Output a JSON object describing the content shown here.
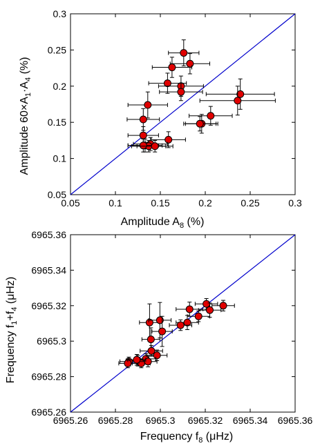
{
  "chart_data": [
    {
      "type": "scatter",
      "xlabel": {
        "main": "Amplitude A",
        "sub": "8",
        "unit": " (%)"
      },
      "ylabel": {
        "main": "Amplitude 60×A",
        "sub1": "1",
        "mid": "·A",
        "sub2": "4",
        "unit": " (%)"
      },
      "xlim": [
        0.05,
        0.3
      ],
      "ylim": [
        0.05,
        0.3
      ],
      "xticks": [
        "0.05",
        "0.1",
        "0.15",
        "0.2",
        "0.25",
        "0.3"
      ],
      "yticks": [
        "0.05",
        "0.1",
        "0.15",
        "0.2",
        "0.25",
        "0.3"
      ],
      "reference_line": {
        "from": [
          0.05,
          0.05
        ],
        "to": [
          0.3,
          0.3
        ],
        "color": "#0000cc"
      },
      "marker_color": "#e00000",
      "points": [
        {
          "x": 0.176,
          "y": 0.246,
          "xerr": 0.017,
          "yerr": 0.018
        },
        {
          "x": 0.183,
          "y": 0.231,
          "xerr": 0.022,
          "yerr": 0.014
        },
        {
          "x": 0.163,
          "y": 0.226,
          "xerr": 0.022,
          "yerr": 0.014
        },
        {
          "x": 0.158,
          "y": 0.204,
          "xerr": 0.021,
          "yerr": 0.014
        },
        {
          "x": 0.173,
          "y": 0.2,
          "xerr": 0.025,
          "yerr": 0.014
        },
        {
          "x": 0.173,
          "y": 0.192,
          "xerr": 0.024,
          "yerr": 0.012
        },
        {
          "x": 0.239,
          "y": 0.189,
          "xerr": 0.038,
          "yerr": 0.021
        },
        {
          "x": 0.236,
          "y": 0.18,
          "xerr": 0.042,
          "yerr": 0.02
        },
        {
          "x": 0.136,
          "y": 0.174,
          "xerr": 0.022,
          "yerr": 0.018
        },
        {
          "x": 0.206,
          "y": 0.159,
          "xerr": 0.024,
          "yerr": 0.013
        },
        {
          "x": 0.131,
          "y": 0.154,
          "xerr": 0.018,
          "yerr": 0.015
        },
        {
          "x": 0.196,
          "y": 0.148,
          "xerr": 0.018,
          "yerr": 0.013
        },
        {
          "x": 0.194,
          "y": 0.148,
          "xerr": 0.018,
          "yerr": 0.01
        },
        {
          "x": 0.131,
          "y": 0.132,
          "xerr": 0.017,
          "yerr": 0.012
        },
        {
          "x": 0.159,
          "y": 0.126,
          "xerr": 0.019,
          "yerr": 0.011
        },
        {
          "x": 0.139,
          "y": 0.12,
          "xerr": 0.019,
          "yerr": 0.009
        },
        {
          "x": 0.133,
          "y": 0.118,
          "xerr": 0.019,
          "yerr": 0.009
        },
        {
          "x": 0.137,
          "y": 0.117,
          "xerr": 0.019,
          "yerr": 0.008
        },
        {
          "x": 0.131,
          "y": 0.118,
          "xerr": 0.017,
          "yerr": 0.009
        },
        {
          "x": 0.144,
          "y": 0.117,
          "xerr": 0.02,
          "yerr": 0.008
        }
      ]
    },
    {
      "type": "scatter",
      "xlabel": {
        "main": "Frequency f",
        "sub": "8",
        "unit": " (μHz)"
      },
      "ylabel": {
        "main": "Frequency f",
        "sub1": "1",
        "mid": "+f",
        "sub2": "4",
        "unit": " (μHz)"
      },
      "xlim": [
        6965.26,
        6965.36
      ],
      "ylim": [
        6965.26,
        6965.36
      ],
      "xticks": [
        "6965.26",
        "6965.28",
        "6965.3",
        "6965.32",
        "6965.34",
        "6965.36"
      ],
      "yticks": [
        "6965.26",
        "6965.28",
        "6965.3",
        "6965.32",
        "6965.34",
        "6965.36"
      ],
      "reference_line": {
        "from": [
          6965.26,
          6965.26
        ],
        "to": [
          6965.36,
          6965.36
        ],
        "color": "#0000cc"
      },
      "marker_color": "#e00000",
      "points": [
        {
          "x": 6965.2952,
          "y": 6965.3105,
          "xerr": 0.0045,
          "yerr": 0.0105
        },
        {
          "x": 6965.2998,
          "y": 6965.3118,
          "xerr": 0.005,
          "yerr": 0.01
        },
        {
          "x": 6965.3008,
          "y": 6965.3055,
          "xerr": 0.0045,
          "yerr": 0.0085
        },
        {
          "x": 6965.2958,
          "y": 6965.301,
          "xerr": 0.004,
          "yerr": 0.0065
        },
        {
          "x": 6965.313,
          "y": 6965.318,
          "xerr": 0.006,
          "yerr": 0.004
        },
        {
          "x": 6965.3205,
          "y": 6965.321,
          "xerr": 0.005,
          "yerr": 0.003
        },
        {
          "x": 6965.328,
          "y": 6965.32,
          "xerr": 0.005,
          "yerr": 0.003
        },
        {
          "x": 6965.322,
          "y": 6965.3175,
          "xerr": 0.005,
          "yerr": 0.004
        },
        {
          "x": 6965.317,
          "y": 6965.314,
          "xerr": 0.005,
          "yerr": 0.003
        },
        {
          "x": 6965.312,
          "y": 6965.3105,
          "xerr": 0.005,
          "yerr": 0.004
        },
        {
          "x": 6965.309,
          "y": 6965.309,
          "xerr": 0.005,
          "yerr": 0.003
        },
        {
          "x": 6965.296,
          "y": 6965.2945,
          "xerr": 0.005,
          "yerr": 0.003
        },
        {
          "x": 6965.2985,
          "y": 6965.292,
          "xerr": 0.0045,
          "yerr": 0.003
        },
        {
          "x": 6965.2935,
          "y": 6965.29,
          "xerr": 0.0045,
          "yerr": 0.003
        },
        {
          "x": 6965.29,
          "y": 6965.289,
          "xerr": 0.004,
          "yerr": 0.003
        },
        {
          "x": 6965.286,
          "y": 6965.2885,
          "xerr": 0.004,
          "yerr": 0.0025
        },
        {
          "x": 6965.2915,
          "y": 6965.2875,
          "xerr": 0.004,
          "yerr": 0.0025
        },
        {
          "x": 6965.2945,
          "y": 6965.2885,
          "xerr": 0.004,
          "yerr": 0.003
        },
        {
          "x": 6965.2855,
          "y": 6965.2875,
          "xerr": 0.004,
          "yerr": 0.0025
        },
        {
          "x": 6965.2895,
          "y": 6965.2895,
          "xerr": 0.004,
          "yerr": 0.003
        }
      ]
    }
  ]
}
